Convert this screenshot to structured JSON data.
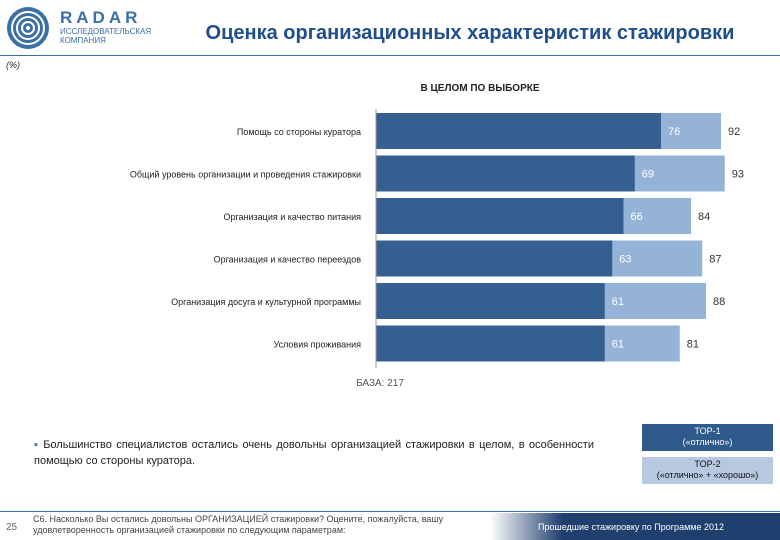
{
  "header": {
    "logo_word": "RADAR",
    "logo_subtitle": "ИССЛЕДОВАТЕЛЬСКАЯ КОМПАНИЯ",
    "title": "Оценка организационных характеристик стажировки"
  },
  "units": "(%)",
  "chart_heading": "В ЦЕЛОМ ПО ВЫБОРКЕ",
  "base_text": "БАЗА: 217",
  "bullet_text": "Большинство специалистов остались очень довольны организацией стажировки в целом, в особенности помощью со стороны куратора.",
  "legend": {
    "top1_line1": "TOP-1",
    "top1_line2": "(«отлично»)",
    "top2_line1": "TOP-2",
    "top2_line2": "(«отлично» + «хорошо»)"
  },
  "footer": {
    "page_number": "25",
    "question": "C6. Насколько Вы остались довольны ОРГАНИЗАЦИЕЙ стажировки? Оцените, пожалуйста, вашу удовлетворенность организацией стажировки по следующим параметрам:",
    "program": "Прошедшие стажировку по Программе 2012"
  },
  "colors": {
    "top1": "#355f91",
    "top2": "#95b3d7",
    "brand": "#1f4e8c"
  },
  "chart_data": {
    "type": "bar",
    "orientation": "horizontal",
    "categories": [
      "Помощь со стороны куратора",
      "Общий уровень организации и проведения стажировки",
      "Организация и качество питания",
      "Организация и качество переездов",
      "Организация досуга и культурной программы",
      "Условия проживания"
    ],
    "series": [
      {
        "name": "TOP-1 («отлично»)",
        "values": [
          76,
          69,
          66,
          63,
          61,
          61
        ]
      },
      {
        "name": "TOP-2 («отлично» + «хорошо»)",
        "values": [
          92,
          93,
          84,
          87,
          88,
          81
        ]
      }
    ],
    "xlim": [
      0,
      100
    ]
  }
}
